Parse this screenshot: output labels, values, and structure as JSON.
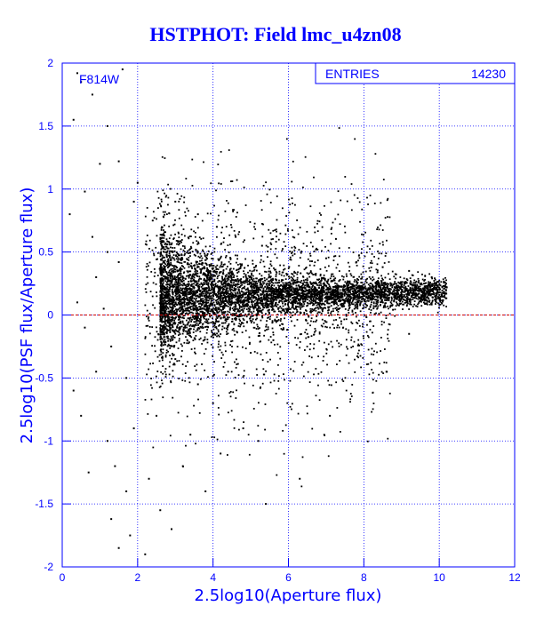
{
  "chart_data": {
    "type": "scatter",
    "title": "HSTPHOT: Field lmc_u4zn08",
    "xlabel": "2.5log10(Aperture flux)",
    "ylabel": "2.5log10(PSF flux/Aperture flux)",
    "xlim": [
      0,
      12
    ],
    "ylim": [
      -2,
      2
    ],
    "x_ticks": [
      "0",
      "2",
      "4",
      "6",
      "8",
      "10",
      "12"
    ],
    "y_ticks": [
      "-2",
      "-1.5",
      "-1",
      "-0.5",
      "0",
      "0.5",
      "1",
      "1.5",
      "2"
    ],
    "grid": true,
    "filter_label": "F814W",
    "stats": {
      "label": "ENTRIES",
      "value": "14230"
    },
    "reference_line": {
      "y": 0,
      "color": "#cc0000",
      "style": "dashed"
    },
    "point_color": "#000000",
    "series": [
      {
        "points": [
          [
            0.4,
            1.92
          ],
          [
            0.5,
            1.85
          ],
          [
            0.8,
            1.75
          ],
          [
            1.2,
            1.5
          ],
          [
            0.3,
            1.55
          ],
          [
            1.0,
            1.2
          ],
          [
            1.6,
            1.95
          ],
          [
            1.5,
            1.22
          ],
          [
            0.6,
            0.98
          ],
          [
            0.2,
            0.8
          ],
          [
            0.8,
            0.62
          ],
          [
            1.2,
            0.5
          ],
          [
            1.5,
            0.42
          ],
          [
            1.9,
            0.9
          ],
          [
            2.0,
            1.05
          ],
          [
            0.9,
            0.3
          ],
          [
            0.4,
            0.1
          ],
          [
            1.1,
            0.05
          ],
          [
            0.6,
            -0.1
          ],
          [
            1.3,
            -0.25
          ],
          [
            0.9,
            -0.45
          ],
          [
            1.7,
            -0.5
          ],
          [
            0.5,
            -0.8
          ],
          [
            1.2,
            -1.0
          ],
          [
            1.4,
            -1.2
          ],
          [
            1.7,
            -1.4
          ],
          [
            1.3,
            -1.62
          ],
          [
            1.8,
            -1.75
          ],
          [
            1.5,
            -1.85
          ],
          [
            2.2,
            -1.9
          ],
          [
            0.3,
            -0.6
          ],
          [
            0.7,
            -1.25
          ],
          [
            1.9,
            -0.9
          ],
          [
            2.3,
            -1.3
          ],
          [
            2.6,
            -1.55
          ],
          [
            2.9,
            -1.7
          ],
          [
            3.2,
            -1.2
          ],
          [
            2.5,
            -0.8
          ],
          [
            3.4,
            -0.95
          ],
          [
            3.8,
            -1.4
          ],
          [
            4.2,
            -1.1
          ],
          [
            4.8,
            -0.9
          ],
          [
            5.2,
            -1.0
          ],
          [
            5.4,
            -1.5
          ],
          [
            6.3,
            -1.3
          ],
          [
            7.1,
            -0.8
          ],
          [
            8.6,
            -0.45
          ],
          [
            9.2,
            -0.15
          ],
          [
            3.0,
            -0.35
          ],
          [
            3.6,
            -0.55
          ],
          [
            4.0,
            -0.7
          ],
          [
            4.4,
            -0.45
          ],
          [
            5.0,
            -0.3
          ],
          [
            5.6,
            -0.2
          ],
          [
            6.5,
            -0.15
          ],
          [
            7.4,
            -0.05
          ],
          [
            2.4,
            0.75
          ],
          [
            3.0,
            0.9
          ],
          [
            3.6,
            0.8
          ],
          [
            4.1,
            0.7
          ],
          [
            4.6,
            0.62
          ],
          [
            5.3,
            0.55
          ],
          [
            6.1,
            0.5
          ],
          [
            7.0,
            0.45
          ],
          [
            7.8,
            0.42
          ],
          [
            8.5,
            0.38
          ],
          [
            9.2,
            0.35
          ],
          [
            9.8,
            0.3
          ],
          [
            10.2,
            0.22
          ],
          [
            9.9,
            0.15
          ],
          [
            10.0,
            0.2
          ],
          [
            9.6,
            0.18
          ]
        ]
      }
    ]
  }
}
